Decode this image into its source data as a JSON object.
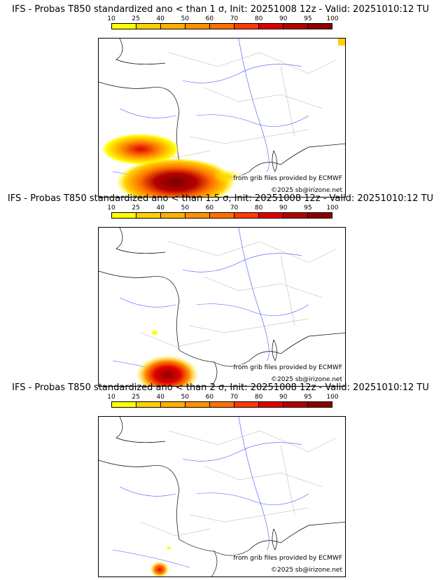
{
  "colorbar": {
    "ticks": [
      "10",
      "25",
      "40",
      "50",
      "60",
      "70",
      "80",
      "90",
      "95",
      "100"
    ],
    "colors": [
      "#ffff00",
      "#ffd000",
      "#ffb000",
      "#ff9000",
      "#ff7000",
      "#ff3b00",
      "#e00000",
      "#b40000",
      "#8c0000"
    ]
  },
  "credit_source": "from grib files provided by ECMWF",
  "credit_copyright": "©2025 sb@irizone.net",
  "panels": [
    {
      "title": "IFS - Probas T850  standardized ano < than 1 σ, Init: 20251008 12z - Valid: 20251010:12 TU"
    },
    {
      "title": "IFS - Probas T850  standardized ano < than 1.5 σ, Init: 20251008 12z - Valid: 20251010:12 TU"
    },
    {
      "title": "IFS - Probas T850  standardized ano < than 2 σ, Init: 20251008 12z - Valid: 20251010:12 TU"
    }
  ]
}
